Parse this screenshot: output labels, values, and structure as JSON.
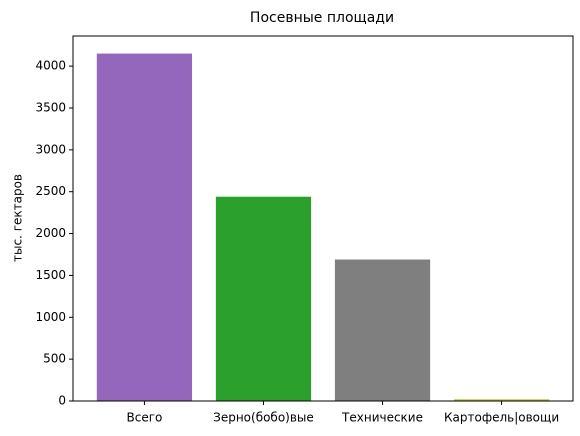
{
  "chart_data": {
    "type": "bar",
    "title": "Посевные площади",
    "y_label": "тыс. гектаров",
    "categories": [
      "Всего",
      "Зерно(бобо)вые",
      "Технические",
      "Картофель|овощи"
    ],
    "values": [
      4150,
      2440,
      1690,
      20
    ],
    "colors": [
      "#9467bd",
      "#2ca02c",
      "#7f7f7f",
      "#bcbd22"
    ],
    "ylim": [
      0,
      4360
    ],
    "yticks": [
      0,
      500,
      1000,
      1500,
      2000,
      2500,
      3000,
      3500,
      4000
    ],
    "grid": false
  }
}
